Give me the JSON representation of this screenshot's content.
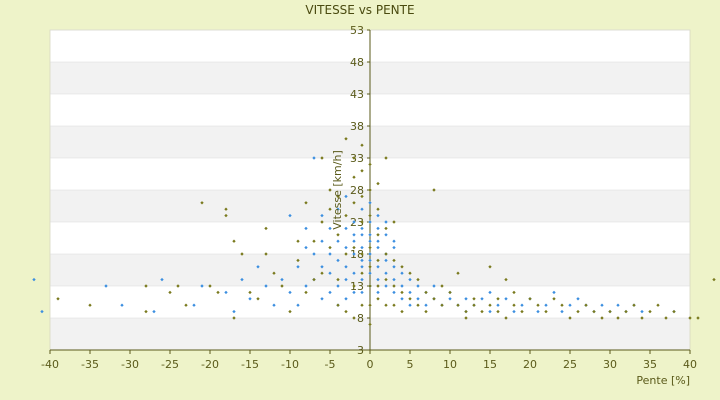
{
  "chart_data": {
    "type": "scatter",
    "title": "VITESSE vs PENTE",
    "xlabel": "Pente [%]",
    "ylabel": "Vitesse [km/h]",
    "xlim": [
      -40,
      40
    ],
    "ylim": [
      3,
      53
    ],
    "x_ticks": [
      "-40",
      "-35",
      "-30",
      "-25",
      "-20",
      "-15",
      "-10",
      "-5",
      "0",
      "5",
      "10",
      "15",
      "20",
      "25",
      "30",
      "35",
      "40"
    ],
    "y_ticks": [
      "3",
      "8",
      "13",
      "18",
      "23",
      "28",
      "33",
      "38",
      "43",
      "48",
      "53"
    ],
    "grid": "horizontal bands",
    "colors": {
      "series_a": "#3c8fe0",
      "series_b": "#7a7a1e",
      "background": "#eef3c9",
      "plot_band_light": "#ffffff",
      "plot_band_dark": "#f2f2f2"
    },
    "series": [
      {
        "color": "#3c8fe0",
        "points": [
          [
            -42,
            14
          ],
          [
            -41,
            9
          ],
          [
            -33,
            13
          ],
          [
            -31,
            10
          ],
          [
            -27,
            9
          ],
          [
            -26,
            14
          ],
          [
            -22,
            10
          ],
          [
            -21,
            13
          ],
          [
            -18,
            12
          ],
          [
            -17,
            9
          ],
          [
            -16,
            14
          ],
          [
            -15,
            11
          ],
          [
            -14,
            16
          ],
          [
            -13,
            13
          ],
          [
            -12,
            10
          ],
          [
            -11,
            14
          ],
          [
            -10,
            12
          ],
          [
            -10,
            24
          ],
          [
            -9,
            16
          ],
          [
            -9,
            10
          ],
          [
            -8,
            13
          ],
          [
            -8,
            19
          ],
          [
            -8,
            22
          ],
          [
            -7,
            18
          ],
          [
            -7,
            33
          ],
          [
            -7,
            14
          ],
          [
            -6,
            20
          ],
          [
            -6,
            16
          ],
          [
            -6,
            11
          ],
          [
            -6,
            24
          ],
          [
            -5,
            18
          ],
          [
            -5,
            22
          ],
          [
            -5,
            15
          ],
          [
            -5,
            12
          ],
          [
            -4,
            20
          ],
          [
            -4,
            17
          ],
          [
            -4,
            25
          ],
          [
            -4,
            13
          ],
          [
            -4,
            10
          ],
          [
            -3,
            22
          ],
          [
            -3,
            19
          ],
          [
            -3,
            16
          ],
          [
            -3,
            27
          ],
          [
            -3,
            14
          ],
          [
            -3,
            11
          ],
          [
            -2,
            21
          ],
          [
            -2,
            18
          ],
          [
            -2,
            23
          ],
          [
            -2,
            15
          ],
          [
            -2,
            12
          ],
          [
            -2,
            20
          ],
          [
            -1,
            19
          ],
          [
            -1,
            22
          ],
          [
            -1,
            17
          ],
          [
            -1,
            25
          ],
          [
            -1,
            14
          ],
          [
            -1,
            16
          ],
          [
            -1,
            21
          ],
          [
            -1,
            12
          ],
          [
            0,
            20
          ],
          [
            0,
            18
          ],
          [
            0,
            23
          ],
          [
            0,
            15
          ],
          [
            0,
            26
          ],
          [
            0,
            13
          ],
          [
            0,
            21
          ],
          [
            0,
            17
          ],
          [
            1,
            19
          ],
          [
            1,
            22
          ],
          [
            1,
            16
          ],
          [
            1,
            24
          ],
          [
            1,
            14
          ],
          [
            1,
            20
          ],
          [
            1,
            12
          ],
          [
            2,
            18
          ],
          [
            2,
            21
          ],
          [
            2,
            15
          ],
          [
            2,
            23
          ],
          [
            2,
            13
          ],
          [
            2,
            17
          ],
          [
            3,
            16
          ],
          [
            3,
            19
          ],
          [
            3,
            14
          ],
          [
            3,
            12
          ],
          [
            3,
            20
          ],
          [
            4,
            15
          ],
          [
            4,
            13
          ],
          [
            4,
            11
          ],
          [
            5,
            14
          ],
          [
            5,
            12
          ],
          [
            5,
            10
          ],
          [
            6,
            13
          ],
          [
            6,
            11
          ],
          [
            7,
            12
          ],
          [
            7,
            10
          ],
          [
            8,
            11
          ],
          [
            8,
            13
          ],
          [
            9,
            10
          ],
          [
            10,
            11
          ],
          [
            10,
            12
          ],
          [
            11,
            10
          ],
          [
            12,
            11
          ],
          [
            12,
            9
          ],
          [
            13,
            10
          ],
          [
            14,
            11
          ],
          [
            15,
            9
          ],
          [
            15,
            12
          ],
          [
            16,
            10
          ],
          [
            17,
            11
          ],
          [
            18,
            9
          ],
          [
            19,
            10
          ],
          [
            20,
            11
          ],
          [
            21,
            9
          ],
          [
            22,
            10
          ],
          [
            23,
            12
          ],
          [
            24,
            9
          ],
          [
            25,
            10
          ],
          [
            26,
            11
          ],
          [
            27,
            10
          ],
          [
            28,
            9
          ],
          [
            29,
            10
          ],
          [
            30,
            9
          ],
          [
            31,
            10
          ],
          [
            32,
            9
          ],
          [
            33,
            10
          ],
          [
            34,
            9
          ],
          [
            38,
            9
          ]
        ]
      },
      {
        "color": "#7a7a1e",
        "points": [
          [
            -39,
            11
          ],
          [
            -35,
            10
          ],
          [
            -28,
            9
          ],
          [
            -28,
            13
          ],
          [
            -25,
            12
          ],
          [
            -24,
            13
          ],
          [
            -23,
            10
          ],
          [
            -21,
            26
          ],
          [
            -20,
            13
          ],
          [
            -19,
            12
          ],
          [
            -18,
            25
          ],
          [
            -18,
            24
          ],
          [
            -17,
            20
          ],
          [
            -17,
            8
          ],
          [
            -16,
            18
          ],
          [
            -15,
            12
          ],
          [
            -14,
            11
          ],
          [
            -13,
            22
          ],
          [
            -13,
            18
          ],
          [
            -12,
            15
          ],
          [
            -11,
            13
          ],
          [
            -10,
            9
          ],
          [
            -9,
            17
          ],
          [
            -9,
            20
          ],
          [
            -8,
            12
          ],
          [
            -8,
            26
          ],
          [
            -7,
            14
          ],
          [
            -7,
            20
          ],
          [
            -6,
            33
          ],
          [
            -6,
            15
          ],
          [
            -6,
            23
          ],
          [
            -5,
            19
          ],
          [
            -5,
            25
          ],
          [
            -5,
            28
          ],
          [
            -4,
            14
          ],
          [
            -4,
            21
          ],
          [
            -4,
            27
          ],
          [
            -4,
            10
          ],
          [
            -3,
            36
          ],
          [
            -3,
            24
          ],
          [
            -3,
            18
          ],
          [
            -3,
            9
          ],
          [
            -2,
            33
          ],
          [
            -2,
            30
          ],
          [
            -2,
            26
          ],
          [
            -2,
            19
          ],
          [
            -2,
            13
          ],
          [
            -2,
            8
          ],
          [
            -1,
            35
          ],
          [
            -1,
            31
          ],
          [
            -1,
            27
          ],
          [
            -1,
            23
          ],
          [
            -1,
            18
          ],
          [
            -1,
            15
          ],
          [
            -1,
            10
          ],
          [
            0,
            32
          ],
          [
            0,
            28
          ],
          [
            0,
            24
          ],
          [
            0,
            19
          ],
          [
            0,
            16
          ],
          [
            0,
            13
          ],
          [
            0,
            10
          ],
          [
            0,
            7
          ],
          [
            1,
            29
          ],
          [
            1,
            25
          ],
          [
            1,
            21
          ],
          [
            1,
            17
          ],
          [
            1,
            13
          ],
          [
            1,
            11
          ],
          [
            2,
            33
          ],
          [
            2,
            22
          ],
          [
            2,
            18
          ],
          [
            2,
            14
          ],
          [
            2,
            10
          ],
          [
            3,
            23
          ],
          [
            3,
            17
          ],
          [
            3,
            13
          ],
          [
            3,
            10
          ],
          [
            4,
            16
          ],
          [
            4,
            12
          ],
          [
            4,
            9
          ],
          [
            5,
            15
          ],
          [
            5,
            11
          ],
          [
            6,
            14
          ],
          [
            6,
            10
          ],
          [
            7,
            12
          ],
          [
            7,
            9
          ],
          [
            8,
            28
          ],
          [
            8,
            11
          ],
          [
            9,
            13
          ],
          [
            9,
            10
          ],
          [
            10,
            12
          ],
          [
            11,
            10
          ],
          [
            11,
            15
          ],
          [
            12,
            9
          ],
          [
            12,
            8
          ],
          [
            13,
            11
          ],
          [
            13,
            10
          ],
          [
            14,
            9
          ],
          [
            15,
            10
          ],
          [
            15,
            16
          ],
          [
            16,
            9
          ],
          [
            16,
            11
          ],
          [
            17,
            14
          ],
          [
            17,
            8
          ],
          [
            18,
            10
          ],
          [
            18,
            12
          ],
          [
            19,
            9
          ],
          [
            20,
            11
          ],
          [
            21,
            10
          ],
          [
            22,
            9
          ],
          [
            23,
            11
          ],
          [
            24,
            10
          ],
          [
            25,
            8
          ],
          [
            26,
            9
          ],
          [
            27,
            10
          ],
          [
            28,
            9
          ],
          [
            29,
            8
          ],
          [
            30,
            9
          ],
          [
            31,
            8
          ],
          [
            32,
            9
          ],
          [
            33,
            10
          ],
          [
            34,
            8
          ],
          [
            35,
            9
          ],
          [
            36,
            10
          ],
          [
            37,
            8
          ],
          [
            38,
            9
          ],
          [
            40,
            8
          ],
          [
            41,
            8
          ],
          [
            43,
            14
          ]
        ]
      }
    ]
  }
}
